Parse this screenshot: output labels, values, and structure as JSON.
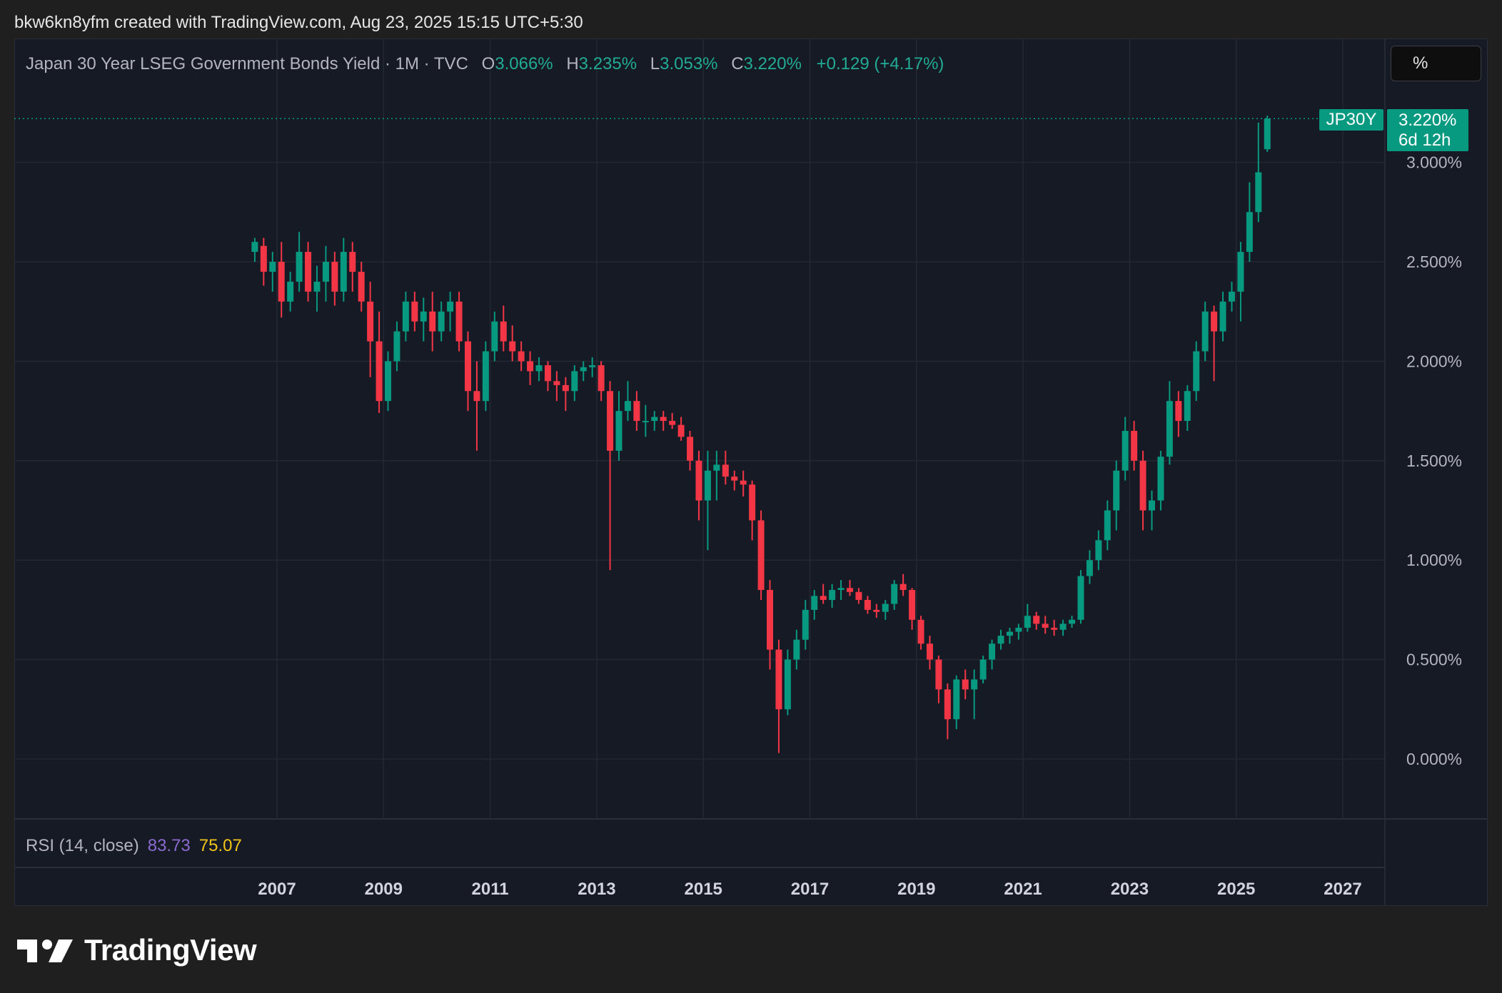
{
  "header": {
    "creator_line": "bkw6kn8yfm created with TradingView.com, Aug 23, 2025 15:15 UTC+5:30"
  },
  "legend": {
    "title": "Japan 30 Year LSEG Government Bonds Yield · 1M · TVC",
    "open_label": "O",
    "open_value": "3.066%",
    "high_label": "H",
    "high_value": "3.235%",
    "low_label": "L",
    "low_value": "3.053%",
    "close_label": "C",
    "close_value": "3.220%",
    "change": "+0.129 (+4.17%)"
  },
  "unit_selector": "%",
  "last_price_tag": {
    "symbol": "JP30Y",
    "price": "3.220%",
    "countdown": "6d 12h"
  },
  "rsi": {
    "label": "RSI (14, close)",
    "value1": "83.73",
    "value2": "75.07"
  },
  "branding": {
    "name": "TradingView"
  },
  "colors": {
    "up": "#089981",
    "down": "#f23645",
    "background": "#161a25",
    "grid": "#242833",
    "page": "#1f1f1f",
    "rsi_line": "#8a6bd1",
    "rsi_ma": "#f0c419"
  },
  "chart_data": {
    "type": "candlestick",
    "title": "Japan 30 Year LSEG Government Bonds Yield",
    "interval": "1M",
    "x_ticks": [
      "2007",
      "2009",
      "2011",
      "2013",
      "2015",
      "2017",
      "2019",
      "2021",
      "2023",
      "2025",
      "2027"
    ],
    "y_ticks": [
      "0.000%",
      "0.500%",
      "1.000%",
      "1.500%",
      "2.000%",
      "2.500%",
      "3.000%"
    ],
    "ylim": [
      -0.3,
      3.55
    ],
    "xlim": [
      2002.1,
      2028.3
    ],
    "grid": true,
    "last_value": 3.22,
    "series": [
      {
        "values": [
          [
            "2006-08",
            2.55,
            2.62,
            2.5,
            2.6
          ],
          [
            "2006-10",
            2.58,
            2.62,
            2.38,
            2.45
          ],
          [
            "2006-12",
            2.45,
            2.55,
            2.35,
            2.5
          ],
          [
            "2007-02",
            2.5,
            2.6,
            2.22,
            2.3
          ],
          [
            "2007-04",
            2.3,
            2.45,
            2.25,
            2.4
          ],
          [
            "2007-06",
            2.4,
            2.65,
            2.35,
            2.55
          ],
          [
            "2007-08",
            2.55,
            2.6,
            2.3,
            2.35
          ],
          [
            "2007-10",
            2.35,
            2.48,
            2.25,
            2.4
          ],
          [
            "2007-12",
            2.4,
            2.58,
            2.3,
            2.5
          ],
          [
            "2008-02",
            2.5,
            2.55,
            2.28,
            2.35
          ],
          [
            "2008-04",
            2.35,
            2.62,
            2.3,
            2.55
          ],
          [
            "2008-06",
            2.55,
            2.6,
            2.35,
            2.45
          ],
          [
            "2008-08",
            2.45,
            2.5,
            2.25,
            2.3
          ],
          [
            "2008-10",
            2.3,
            2.4,
            1.92,
            2.1
          ],
          [
            "2008-12",
            2.1,
            2.25,
            1.74,
            1.8
          ],
          [
            "2009-02",
            1.8,
            2.05,
            1.75,
            2.0
          ],
          [
            "2009-04",
            2.0,
            2.2,
            1.95,
            2.15
          ],
          [
            "2009-06",
            2.15,
            2.35,
            2.1,
            2.3
          ],
          [
            "2009-08",
            2.3,
            2.35,
            2.15,
            2.2
          ],
          [
            "2009-10",
            2.2,
            2.32,
            2.1,
            2.25
          ],
          [
            "2009-12",
            2.25,
            2.35,
            2.05,
            2.15
          ],
          [
            "2010-02",
            2.15,
            2.3,
            2.1,
            2.25
          ],
          [
            "2010-04",
            2.25,
            2.35,
            2.15,
            2.3
          ],
          [
            "2010-06",
            2.3,
            2.35,
            2.05,
            2.1
          ],
          [
            "2010-08",
            2.1,
            2.15,
            1.75,
            1.85
          ],
          [
            "2010-10",
            1.85,
            2.0,
            1.55,
            1.8
          ],
          [
            "2010-12",
            1.8,
            2.1,
            1.75,
            2.05
          ],
          [
            "2011-02",
            2.05,
            2.25,
            2.0,
            2.2
          ],
          [
            "2011-04",
            2.2,
            2.28,
            2.05,
            2.1
          ],
          [
            "2011-06",
            2.1,
            2.18,
            2.0,
            2.05
          ],
          [
            "2011-08",
            2.05,
            2.1,
            1.95,
            2.0
          ],
          [
            "2011-10",
            2.0,
            2.05,
            1.88,
            1.95
          ],
          [
            "2011-12",
            1.95,
            2.02,
            1.9,
            1.98
          ],
          [
            "2012-02",
            1.98,
            2.0,
            1.85,
            1.9
          ],
          [
            "2012-04",
            1.9,
            1.95,
            1.8,
            1.88
          ],
          [
            "2012-06",
            1.88,
            1.92,
            1.75,
            1.85
          ],
          [
            "2012-08",
            1.85,
            1.98,
            1.8,
            1.95
          ],
          [
            "2012-10",
            1.95,
            2.0,
            1.9,
            1.97
          ],
          [
            "2012-12",
            1.97,
            2.02,
            1.92,
            1.98
          ],
          [
            "2013-02",
            1.98,
            2.0,
            1.8,
            1.85
          ],
          [
            "2013-04",
            1.85,
            1.9,
            0.95,
            1.55
          ],
          [
            "2013-06",
            1.55,
            1.85,
            1.5,
            1.75
          ],
          [
            "2013-08",
            1.75,
            1.9,
            1.7,
            1.8
          ],
          [
            "2013-10",
            1.8,
            1.85,
            1.65,
            1.7
          ],
          [
            "2013-12",
            1.7,
            1.78,
            1.62,
            1.7
          ],
          [
            "2014-02",
            1.7,
            1.75,
            1.65,
            1.72
          ],
          [
            "2014-04",
            1.72,
            1.75,
            1.65,
            1.7
          ],
          [
            "2014-06",
            1.7,
            1.74,
            1.66,
            1.68
          ],
          [
            "2014-08",
            1.68,
            1.72,
            1.6,
            1.62
          ],
          [
            "2014-10",
            1.62,
            1.65,
            1.45,
            1.5
          ],
          [
            "2014-12",
            1.5,
            1.55,
            1.2,
            1.3
          ],
          [
            "2015-02",
            1.3,
            1.55,
            1.05,
            1.45
          ],
          [
            "2015-04",
            1.45,
            1.55,
            1.3,
            1.48
          ],
          [
            "2015-06",
            1.48,
            1.55,
            1.38,
            1.42
          ],
          [
            "2015-08",
            1.42,
            1.45,
            1.35,
            1.4
          ],
          [
            "2015-10",
            1.4,
            1.45,
            1.32,
            1.38
          ],
          [
            "2015-12",
            1.38,
            1.4,
            1.1,
            1.2
          ],
          [
            "2016-02",
            1.2,
            1.25,
            0.8,
            0.85
          ],
          [
            "2016-04",
            0.85,
            0.9,
            0.45,
            0.55
          ],
          [
            "2016-06",
            0.55,
            0.6,
            0.03,
            0.25
          ],
          [
            "2016-08",
            0.25,
            0.55,
            0.22,
            0.5
          ],
          [
            "2016-10",
            0.5,
            0.65,
            0.45,
            0.6
          ],
          [
            "2016-12",
            0.6,
            0.8,
            0.55,
            0.75
          ],
          [
            "2017-02",
            0.75,
            0.85,
            0.7,
            0.82
          ],
          [
            "2017-04",
            0.82,
            0.88,
            0.78,
            0.8
          ],
          [
            "2017-06",
            0.8,
            0.88,
            0.76,
            0.85
          ],
          [
            "2017-08",
            0.85,
            0.9,
            0.8,
            0.86
          ],
          [
            "2017-10",
            0.86,
            0.9,
            0.82,
            0.84
          ],
          [
            "2017-12",
            0.84,
            0.86,
            0.78,
            0.8
          ],
          [
            "2018-02",
            0.8,
            0.82,
            0.73,
            0.75
          ],
          [
            "2018-04",
            0.75,
            0.78,
            0.71,
            0.74
          ],
          [
            "2018-06",
            0.74,
            0.8,
            0.7,
            0.78
          ],
          [
            "2018-08",
            0.78,
            0.9,
            0.75,
            0.88
          ],
          [
            "2018-10",
            0.88,
            0.93,
            0.82,
            0.85
          ],
          [
            "2018-12",
            0.85,
            0.86,
            0.65,
            0.7
          ],
          [
            "2019-02",
            0.7,
            0.72,
            0.55,
            0.58
          ],
          [
            "2019-04",
            0.58,
            0.62,
            0.45,
            0.5
          ],
          [
            "2019-06",
            0.5,
            0.52,
            0.28,
            0.35
          ],
          [
            "2019-08",
            0.35,
            0.38,
            0.1,
            0.2
          ],
          [
            "2019-10",
            0.2,
            0.42,
            0.15,
            0.4
          ],
          [
            "2019-12",
            0.4,
            0.45,
            0.3,
            0.35
          ],
          [
            "2020-02",
            0.35,
            0.45,
            0.2,
            0.4
          ],
          [
            "2020-04",
            0.4,
            0.52,
            0.38,
            0.5
          ],
          [
            "2020-06",
            0.5,
            0.6,
            0.45,
            0.58
          ],
          [
            "2020-08",
            0.58,
            0.65,
            0.55,
            0.62
          ],
          [
            "2020-10",
            0.62,
            0.66,
            0.58,
            0.64
          ],
          [
            "2020-12",
            0.64,
            0.68,
            0.6,
            0.66
          ],
          [
            "2021-02",
            0.66,
            0.78,
            0.64,
            0.72
          ],
          [
            "2021-04",
            0.72,
            0.74,
            0.65,
            0.68
          ],
          [
            "2021-06",
            0.68,
            0.72,
            0.63,
            0.66
          ],
          [
            "2021-08",
            0.66,
            0.7,
            0.62,
            0.65
          ],
          [
            "2021-10",
            0.65,
            0.7,
            0.62,
            0.68
          ],
          [
            "2021-12",
            0.68,
            0.72,
            0.66,
            0.7
          ],
          [
            "2022-02",
            0.7,
            0.95,
            0.68,
            0.92
          ],
          [
            "2022-04",
            0.92,
            1.05,
            0.88,
            1.0
          ],
          [
            "2022-06",
            1.0,
            1.15,
            0.95,
            1.1
          ],
          [
            "2022-08",
            1.1,
            1.3,
            1.05,
            1.25
          ],
          [
            "2022-10",
            1.25,
            1.5,
            1.15,
            1.45
          ],
          [
            "2022-12",
            1.45,
            1.72,
            1.4,
            1.65
          ],
          [
            "2023-02",
            1.65,
            1.7,
            1.45,
            1.5
          ],
          [
            "2023-04",
            1.5,
            1.55,
            1.15,
            1.25
          ],
          [
            "2023-06",
            1.25,
            1.35,
            1.15,
            1.3
          ],
          [
            "2023-08",
            1.3,
            1.55,
            1.25,
            1.52
          ],
          [
            "2023-10",
            1.52,
            1.9,
            1.48,
            1.8
          ],
          [
            "2023-12",
            1.8,
            1.85,
            1.62,
            1.7
          ],
          [
            "2024-02",
            1.7,
            1.88,
            1.65,
            1.85
          ],
          [
            "2024-04",
            1.85,
            2.1,
            1.8,
            2.05
          ],
          [
            "2024-06",
            2.05,
            2.3,
            2.0,
            2.25
          ],
          [
            "2024-08",
            2.25,
            2.28,
            1.9,
            2.15
          ],
          [
            "2024-10",
            2.15,
            2.35,
            2.1,
            2.3
          ],
          [
            "2024-12",
            2.3,
            2.4,
            2.25,
            2.35
          ],
          [
            "2025-02",
            2.35,
            2.6,
            2.2,
            2.55
          ],
          [
            "2025-04",
            2.55,
            2.9,
            2.5,
            2.75
          ],
          [
            "2025-06",
            2.75,
            3.2,
            2.7,
            2.95
          ],
          [
            "2025-08",
            3.066,
            3.235,
            3.053,
            3.22
          ]
        ]
      }
    ]
  }
}
